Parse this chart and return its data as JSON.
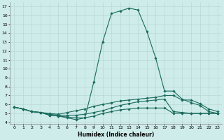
{
  "xlabel": "Humidex (Indice chaleur)",
  "background_color": "#ceecea",
  "grid_color": "#b8d8d5",
  "line_color": "#1a6b5e",
  "xlim": [
    -0.5,
    23.5
  ],
  "ylim": [
    3.8,
    17.5
  ],
  "xticks": [
    0,
    1,
    2,
    3,
    4,
    5,
    6,
    7,
    8,
    9,
    10,
    11,
    12,
    13,
    14,
    15,
    16,
    17,
    18,
    19,
    20,
    21,
    22,
    23
  ],
  "yticks": [
    4,
    5,
    6,
    7,
    8,
    9,
    10,
    11,
    12,
    13,
    14,
    15,
    16,
    17
  ],
  "lines": [
    {
      "x": [
        0,
        1,
        2,
        3,
        4,
        5,
        6,
        7,
        8,
        9,
        10,
        11,
        12,
        13,
        14,
        15,
        16,
        17,
        18,
        19,
        20,
        21,
        22,
        23
      ],
      "y": [
        5.7,
        5.5,
        5.2,
        5.1,
        4.8,
        4.7,
        4.6,
        4.5,
        4.5,
        8.5,
        13.0,
        16.2,
        16.5,
        16.8,
        16.6,
        14.2,
        11.2,
        7.5,
        7.5,
        6.6,
        6.2,
        5.9,
        5.2,
        5.0
      ]
    },
    {
      "x": [
        0,
        1,
        2,
        3,
        4,
        5,
        6,
        7,
        8,
        9,
        10,
        11,
        12,
        13,
        14,
        15,
        16,
        17,
        18,
        19,
        20,
        21,
        22,
        23
      ],
      "y": [
        5.7,
        5.5,
        5.2,
        5.1,
        5.0,
        4.9,
        5.1,
        5.3,
        5.5,
        5.8,
        6.0,
        6.2,
        6.4,
        6.5,
        6.6,
        6.7,
        6.8,
        7.0,
        7.0,
        6.5,
        6.5,
        6.1,
        5.5,
        5.2
      ]
    },
    {
      "x": [
        0,
        1,
        2,
        3,
        4,
        5,
        6,
        7,
        8,
        9,
        10,
        11,
        12,
        13,
        14,
        15,
        16,
        17,
        18,
        19,
        20,
        21,
        22,
        23
      ],
      "y": [
        5.7,
        5.5,
        5.2,
        5.1,
        4.9,
        4.8,
        4.8,
        4.8,
        4.9,
        5.1,
        5.3,
        5.6,
        5.9,
        6.1,
        6.3,
        6.4,
        6.5,
        6.6,
        5.2,
        5.1,
        5.0,
        5.0,
        5.0,
        5.0
      ]
    },
    {
      "x": [
        0,
        1,
        2,
        3,
        4,
        5,
        6,
        7,
        8,
        9,
        10,
        11,
        12,
        13,
        14,
        15,
        16,
        17,
        18,
        19,
        20,
        21,
        22,
        23
      ],
      "y": [
        5.7,
        5.5,
        5.2,
        5.1,
        4.8,
        4.7,
        4.5,
        4.3,
        4.5,
        4.7,
        5.0,
        5.2,
        5.4,
        5.5,
        5.6,
        5.6,
        5.6,
        5.6,
        5.0,
        5.0,
        5.0,
        5.0,
        5.0,
        5.0
      ]
    }
  ]
}
